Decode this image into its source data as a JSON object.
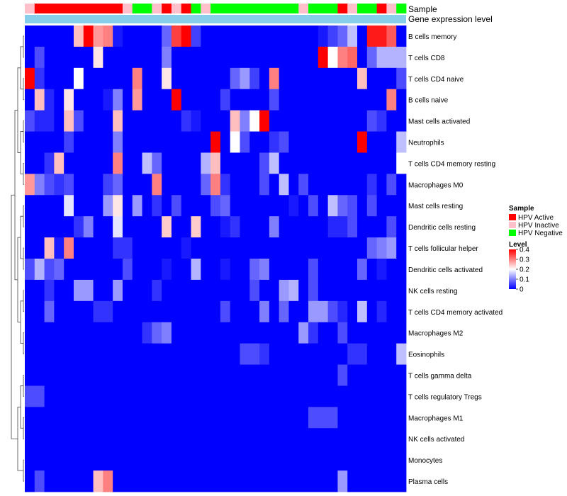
{
  "chart_data": {
    "type": "heatmap",
    "title": "",
    "annotations": [
      {
        "label": "Sample",
        "legend_title": "Sample"
      },
      {
        "label": "Gene expression level"
      }
    ],
    "sample_groups": [
      "HPV Inactive",
      "HPV Active",
      "HPV Active",
      "HPV Active",
      "HPV Active",
      "HPV Active",
      "HPV Active",
      "HPV Active",
      "HPV Active",
      "HPV Active",
      "HPV Inactive",
      "HPV Negative",
      "HPV Negative",
      "HPV Inactive",
      "HPV Active",
      "HPV Inactive",
      "HPV Active",
      "HPV Negative",
      "HPV Inactive",
      "HPV Negative",
      "HPV Negative",
      "HPV Negative",
      "HPV Negative",
      "HPV Negative",
      "HPV Negative",
      "HPV Negative",
      "HPV Negative",
      "HPV Negative",
      "HPV Inactive",
      "HPV Negative",
      "HPV Negative",
      "HPV Negative",
      "HPV Active",
      "HPV Inactive",
      "HPV Negative",
      "HPV Negative",
      "HPV Active",
      "HPV Inactive",
      "HPV Negative"
    ],
    "group_legend": [
      {
        "name": "HPV Active",
        "color": "#ff0000"
      },
      {
        "name": "HPV Inactive",
        "color": "#ffc0cb"
      },
      {
        "name": "HPV Negative",
        "color": "#00ff00"
      }
    ],
    "expression_bar_color": "#87ceeb",
    "rows": [
      "B cells memory",
      "T cells CD8",
      "T cells CD4 naive",
      "B cells naive",
      "Mast cells activated",
      "Neutrophils",
      "T cells CD4 memory resting",
      "Macrophages M0",
      "Mast cells resting",
      "Dendritic cells resting",
      "T cells follicular helper",
      "Dendritic cells activated",
      "NK cells resting",
      "T cells CD4 memory activated",
      "Macrophages M2",
      "Eosinophils",
      "T cells gamma delta",
      "T cells regulatory  Tregs",
      "Macrophages M1",
      "NK cells activated",
      "Monocytes",
      "Plasma cells"
    ],
    "values": [
      [
        0.0,
        0.0,
        0.0,
        0.0,
        0.0,
        0.25,
        0.4,
        0.28,
        0.3,
        0.02,
        0.0,
        0.0,
        0.0,
        0.0,
        0.08,
        0.35,
        0.4,
        0.05,
        0.0,
        0.0,
        0.0,
        0.0,
        0.0,
        0.0,
        0.0,
        0.0,
        0.0,
        0.0,
        0.0,
        0.0,
        0.02,
        0.05,
        0.08,
        0.15,
        0.0,
        0.38,
        0.38,
        0.33,
        0.0
      ],
      [
        0.0,
        0.06,
        0.0,
        0.0,
        0.0,
        0.0,
        0.0,
        0.22,
        0.0,
        0.0,
        0.0,
        0.0,
        0.0,
        0.0,
        0.1,
        0.0,
        0.0,
        0.0,
        0.0,
        0.0,
        0.0,
        0.0,
        0.0,
        0.0,
        0.0,
        0.0,
        0.0,
        0.0,
        0.0,
        0.0,
        0.4,
        0.2,
        0.3,
        0.32,
        0.0,
        0.08,
        0.14,
        0.14,
        0.14
      ],
      [
        0.4,
        0.04,
        0.0,
        0.0,
        0.0,
        0.2,
        0.0,
        0.0,
        0.0,
        0.0,
        0.0,
        0.3,
        0.0,
        0.0,
        0.22,
        0.0,
        0.0,
        0.0,
        0.0,
        0.0,
        0.0,
        0.08,
        0.12,
        0.05,
        0.0,
        0.3,
        0.0,
        0.0,
        0.0,
        0.0,
        0.0,
        0.0,
        0.0,
        0.0,
        0.25,
        0.0,
        0.0,
        0.0,
        0.06
      ],
      [
        0.0,
        0.25,
        0.03,
        0.0,
        0.22,
        0.0,
        0.0,
        0.0,
        0.02,
        0.1,
        0.0,
        0.28,
        0.0,
        0.0,
        0.0,
        0.4,
        0.0,
        0.0,
        0.0,
        0.0,
        0.05,
        0.0,
        0.0,
        0.0,
        0.0,
        0.06,
        0.0,
        0.0,
        0.0,
        0.0,
        0.0,
        0.0,
        0.0,
        0.0,
        0.0,
        0.0,
        0.0,
        0.3,
        0.0
      ],
      [
        0.06,
        0.03,
        0.03,
        0.0,
        0.25,
        0.06,
        0.0,
        0.0,
        0.0,
        0.25,
        0.0,
        0.0,
        0.0,
        0.0,
        0.0,
        0.0,
        0.04,
        0.02,
        0.0,
        0.0,
        0.0,
        0.25,
        0.1,
        0.2,
        0.4,
        0.0,
        0.0,
        0.0,
        0.0,
        0.0,
        0.0,
        0.0,
        0.0,
        0.0,
        0.0,
        0.06,
        0.04,
        0.0,
        0.0
      ],
      [
        0.0,
        0.0,
        0.0,
        0.0,
        0.05,
        0.0,
        0.0,
        0.0,
        0.0,
        0.1,
        0.0,
        0.0,
        0.0,
        0.0,
        0.0,
        0.0,
        0.0,
        0.0,
        0.0,
        0.4,
        0.0,
        0.2,
        0.06,
        0.0,
        0.0,
        0.04,
        0.06,
        0.0,
        0.0,
        0.0,
        0.0,
        0.0,
        0.0,
        0.0,
        0.4,
        0.0,
        0.0,
        0.0,
        0.15
      ],
      [
        0.0,
        0.0,
        0.04,
        0.25,
        0.0,
        0.0,
        0.0,
        0.0,
        0.0,
        0.3,
        0.0,
        0.0,
        0.15,
        0.08,
        0.0,
        0.0,
        0.0,
        0.0,
        0.14,
        0.25,
        0.0,
        0.0,
        0.0,
        0.0,
        0.06,
        0.15,
        0.0,
        0.0,
        0.0,
        0.0,
        0.0,
        0.0,
        0.0,
        0.0,
        0.0,
        0.0,
        0.0,
        0.0,
        0.2
      ],
      [
        0.28,
        0.1,
        0.06,
        0.04,
        0.06,
        0.0,
        0.0,
        0.0,
        0.05,
        0.08,
        0.0,
        0.0,
        0.0,
        0.3,
        0.0,
        0.0,
        0.0,
        0.0,
        0.08,
        0.3,
        0.04,
        0.0,
        0.0,
        0.0,
        0.06,
        0.0,
        0.15,
        0.0,
        0.06,
        0.0,
        0.0,
        0.0,
        0.0,
        0.0,
        0.0,
        0.04,
        0.0,
        0.06,
        0.0
      ],
      [
        0.0,
        0.0,
        0.0,
        0.0,
        0.18,
        0.0,
        0.0,
        0.0,
        0.12,
        0.22,
        0.0,
        0.12,
        0.0,
        0.04,
        0.0,
        0.06,
        0.0,
        0.0,
        0.0,
        0.06,
        0.08,
        0.0,
        0.0,
        0.0,
        0.0,
        0.0,
        0.0,
        0.02,
        0.0,
        0.06,
        0.0,
        0.15,
        0.08,
        0.06,
        0.0,
        0.06,
        0.0,
        0.0,
        0.0
      ],
      [
        0.0,
        0.0,
        0.0,
        0.0,
        0.0,
        0.04,
        0.1,
        0.0,
        0.0,
        0.18,
        0.0,
        0.0,
        0.0,
        0.0,
        0.24,
        0.0,
        0.0,
        0.24,
        0.0,
        0.0,
        0.02,
        0.04,
        0.0,
        0.0,
        0.0,
        0.1,
        0.0,
        0.0,
        0.0,
        0.0,
        0.0,
        0.03,
        0.03,
        0.06,
        0.0,
        0.0,
        0.0,
        0.06,
        0.0
      ],
      [
        0.0,
        0.0,
        0.25,
        0.02,
        0.3,
        0.0,
        0.0,
        0.0,
        0.0,
        0.04,
        0.04,
        0.0,
        0.0,
        0.0,
        0.0,
        0.0,
        0.02,
        0.0,
        0.0,
        0.0,
        0.0,
        0.0,
        0.0,
        0.0,
        0.0,
        0.0,
        0.0,
        0.0,
        0.0,
        0.0,
        0.0,
        0.0,
        0.0,
        0.0,
        0.0,
        0.08,
        0.1,
        0.12,
        0.0
      ],
      [
        0.06,
        0.14,
        0.06,
        0.08,
        0.0,
        0.0,
        0.0,
        0.0,
        0.0,
        0.0,
        0.06,
        0.0,
        0.0,
        0.0,
        0.02,
        0.0,
        0.0,
        0.14,
        0.0,
        0.0,
        0.02,
        0.0,
        0.0,
        0.08,
        0.1,
        0.0,
        0.0,
        0.0,
        0.0,
        0.06,
        0.0,
        0.0,
        0.0,
        0.0,
        0.08,
        0.0,
        0.02,
        0.0,
        0.0
      ],
      [
        0.0,
        0.0,
        0.04,
        0.0,
        0.0,
        0.12,
        0.12,
        0.0,
        0.0,
        0.12,
        0.0,
        0.0,
        0.0,
        0.04,
        0.0,
        0.0,
        0.0,
        0.0,
        0.0,
        0.0,
        0.0,
        0.0,
        0.0,
        0.06,
        0.0,
        0.0,
        0.12,
        0.14,
        0.0,
        0.06,
        0.0,
        0.0,
        0.0,
        0.0,
        0.0,
        0.0,
        0.0,
        0.0,
        0.0
      ],
      [
        0.0,
        0.0,
        0.08,
        0.0,
        0.0,
        0.0,
        0.0,
        0.04,
        0.04,
        0.0,
        0.0,
        0.0,
        0.0,
        0.0,
        0.0,
        0.0,
        0.0,
        0.0,
        0.0,
        0.0,
        0.06,
        0.0,
        0.0,
        0.0,
        0.1,
        0.0,
        0.08,
        0.0,
        0.0,
        0.12,
        0.12,
        0.06,
        0.03,
        0.0,
        0.15,
        0.0,
        0.03,
        0.0,
        0.0
      ],
      [
        0.0,
        0.0,
        0.0,
        0.0,
        0.0,
        0.0,
        0.0,
        0.0,
        0.0,
        0.0,
        0.0,
        0.0,
        0.04,
        0.08,
        0.1,
        0.0,
        0.0,
        0.0,
        0.0,
        0.0,
        0.0,
        0.0,
        0.0,
        0.0,
        0.0,
        0.0,
        0.0,
        0.0,
        0.12,
        0.04,
        0.0,
        0.0,
        0.06,
        0.0,
        0.0,
        0.0,
        0.0,
        0.0,
        0.0
      ],
      [
        0.0,
        0.0,
        0.0,
        0.0,
        0.0,
        0.0,
        0.0,
        0.0,
        0.0,
        0.0,
        0.0,
        0.0,
        0.0,
        0.0,
        0.0,
        0.0,
        0.0,
        0.0,
        0.0,
        0.0,
        0.0,
        0.0,
        0.06,
        0.06,
        0.04,
        0.0,
        0.0,
        0.0,
        0.0,
        0.0,
        0.0,
        0.0,
        0.0,
        0.04,
        0.04,
        0.0,
        0.0,
        0.0,
        0.15
      ],
      [
        0.0,
        0.0,
        0.0,
        0.0,
        0.0,
        0.0,
        0.0,
        0.0,
        0.0,
        0.0,
        0.0,
        0.0,
        0.0,
        0.0,
        0.0,
        0.0,
        0.0,
        0.0,
        0.0,
        0.0,
        0.0,
        0.0,
        0.0,
        0.0,
        0.0,
        0.0,
        0.0,
        0.0,
        0.0,
        0.0,
        0.0,
        0.0,
        0.06,
        0.0,
        0.0,
        0.0,
        0.0,
        0.0,
        0.0
      ],
      [
        0.06,
        0.06,
        0.0,
        0.0,
        0.0,
        0.0,
        0.0,
        0.0,
        0.0,
        0.0,
        0.0,
        0.0,
        0.0,
        0.0,
        0.0,
        0.0,
        0.0,
        0.0,
        0.0,
        0.0,
        0.0,
        0.0,
        0.0,
        0.0,
        0.0,
        0.0,
        0.0,
        0.0,
        0.0,
        0.0,
        0.0,
        0.0,
        0.0,
        0.0,
        0.0,
        0.0,
        0.0,
        0.0,
        0.0
      ],
      [
        0.0,
        0.0,
        0.0,
        0.0,
        0.0,
        0.0,
        0.0,
        0.0,
        0.0,
        0.0,
        0.0,
        0.0,
        0.0,
        0.0,
        0.0,
        0.0,
        0.0,
        0.0,
        0.0,
        0.0,
        0.0,
        0.0,
        0.0,
        0.0,
        0.0,
        0.0,
        0.0,
        0.0,
        0.0,
        0.06,
        0.06,
        0.06,
        0.0,
        0.0,
        0.0,
        0.0,
        0.0,
        0.0,
        0.0
      ],
      [
        0.0,
        0.0,
        0.0,
        0.0,
        0.0,
        0.0,
        0.0,
        0.0,
        0.0,
        0.0,
        0.0,
        0.0,
        0.0,
        0.0,
        0.0,
        0.0,
        0.0,
        0.0,
        0.0,
        0.0,
        0.0,
        0.0,
        0.0,
        0.0,
        0.0,
        0.0,
        0.0,
        0.0,
        0.0,
        0.0,
        0.0,
        0.0,
        0.0,
        0.0,
        0.0,
        0.0,
        0.0,
        0.0,
        0.0
      ],
      [
        0.0,
        0.0,
        0.0,
        0.0,
        0.0,
        0.0,
        0.0,
        0.0,
        0.0,
        0.0,
        0.0,
        0.0,
        0.0,
        0.0,
        0.0,
        0.0,
        0.0,
        0.0,
        0.0,
        0.0,
        0.0,
        0.0,
        0.0,
        0.0,
        0.0,
        0.0,
        0.0,
        0.0,
        0.0,
        0.0,
        0.0,
        0.0,
        0.0,
        0.0,
        0.0,
        0.0,
        0.0,
        0.0,
        0.0
      ],
      [
        0.0,
        0.06,
        0.0,
        0.0,
        0.0,
        0.0,
        0.0,
        0.25,
        0.3,
        0.0,
        0.0,
        0.0,
        0.0,
        0.0,
        0.0,
        0.0,
        0.0,
        0.0,
        0.0,
        0.0,
        0.0,
        0.0,
        0.0,
        0.0,
        0.0,
        0.0,
        0.0,
        0.0,
        0.0,
        0.0,
        0.0,
        0.0,
        0.12,
        0.0,
        0.0,
        0.0,
        0.0,
        0.0,
        0.0
      ]
    ],
    "color_scale": {
      "title": "Level",
      "min": 0,
      "max": 0.4,
      "colors": [
        "#0000ff",
        "#ffffff",
        "#ff0000"
      ],
      "ticks": [
        0.4,
        0.3,
        0.2,
        0.1,
        0
      ]
    }
  }
}
